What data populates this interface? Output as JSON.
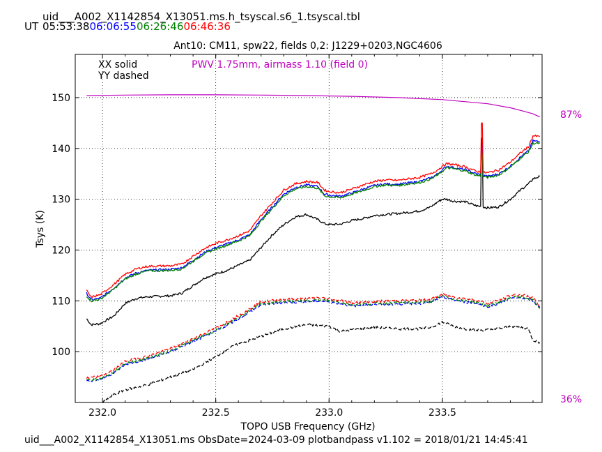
{
  "header": {
    "filename": "uid___A002_X1142854_X13051.ms.h_tsyscal.s6_1.tsyscal.tbl",
    "ut_label": "UT",
    "times": [
      {
        "text": "05:53:38",
        "color": "#000000"
      },
      {
        "text": "06:06:55",
        "color": "#0000ff"
      },
      {
        "text": "06:26:46",
        "color": "#008000"
      },
      {
        "text": "06:46:36",
        "color": "#ff0000"
      }
    ]
  },
  "footer": {
    "text": "uid___A002_X1142854_X13051.ms  ObsDate=2024-03-09   plotbandpass v1.102 = 2018/01/21 14:45:41"
  },
  "chart_data": {
    "type": "line",
    "title": "Ant10: CM11,  spw22,  fields 0,2: J1229+0203,NGC4606",
    "xlabel": "TOPO USB Frequency (GHz)",
    "ylabel": "Tsys (K)",
    "xlim": [
      231.88,
      233.94
    ],
    "ylim": [
      90,
      158.5
    ],
    "xticks": [
      232.0,
      232.5,
      233.0,
      233.5
    ],
    "xtick_labels": [
      "232.0",
      "232.5",
      "233.0",
      "233.5"
    ],
    "yticks": [
      100,
      110,
      120,
      130,
      140,
      150
    ],
    "ytick_labels": [
      "100",
      "110",
      "120",
      "130",
      "140",
      "150"
    ],
    "grid": true,
    "legend": {
      "placement": "top-left",
      "entries": [
        "XX solid",
        "YY dashed"
      ]
    },
    "annotation": {
      "text": "PWV 1.75mm, airmass 1.10 (field 0)",
      "color": "#bf00bf"
    },
    "right_axis_labels": [
      {
        "text": "87%",
        "color": "#bf00bf"
      },
      {
        "text": "36%",
        "color": "#bf00bf"
      }
    ],
    "transmission_curve": {
      "color": "#bf00bf",
      "x": [
        231.93,
        232.1,
        232.3,
        232.5,
        232.7,
        232.9,
        233.1,
        233.3,
        233.5,
        233.7,
        233.8,
        233.86,
        233.9,
        233.93
      ],
      "y": [
        150.4,
        150.5,
        150.55,
        150.55,
        150.5,
        150.4,
        150.25,
        150.0,
        149.6,
        148.8,
        148.0,
        147.3,
        146.8,
        146.2
      ]
    },
    "x": [
      231.93,
      231.95,
      231.99,
      232.05,
      232.1,
      232.15,
      232.2,
      232.3,
      232.35,
      232.4,
      232.45,
      232.5,
      232.55,
      232.6,
      232.65,
      232.7,
      232.75,
      232.8,
      232.85,
      232.9,
      232.95,
      232.98,
      233.0,
      233.05,
      233.1,
      233.15,
      233.2,
      233.25,
      233.3,
      233.35,
      233.4,
      233.45,
      233.48,
      233.5,
      233.52,
      233.55,
      233.6,
      233.65,
      233.68,
      233.7,
      233.75,
      233.8,
      233.85,
      233.88,
      233.9,
      233.93
    ],
    "series": [
      {
        "name": "XX 05:53:38",
        "color": "#000000",
        "dash": false,
        "values": [
          106.5,
          105.3,
          105.5,
          107.0,
          109.5,
          110.5,
          110.8,
          111.0,
          111.5,
          113.0,
          114.5,
          115.3,
          116.0,
          117.0,
          118.0,
          120.5,
          123.0,
          125.0,
          126.5,
          127.0,
          126.0,
          125.2,
          125.0,
          125.1,
          125.8,
          126.2,
          126.8,
          127.0,
          127.2,
          127.4,
          127.7,
          128.5,
          129.5,
          130.0,
          130.0,
          129.6,
          129.5,
          128.7,
          128.5,
          128.3,
          128.5,
          130.0,
          132.0,
          133.0,
          134.0,
          134.5
        ]
      },
      {
        "name": "XX 06:06:55",
        "color": "#0000ff",
        "dash": false,
        "values": [
          111.5,
          110.2,
          110.5,
          112.5,
          114.5,
          115.5,
          116.0,
          116.2,
          116.5,
          118.0,
          119.5,
          120.5,
          121.2,
          122.0,
          123.0,
          126.0,
          128.5,
          131.0,
          132.3,
          132.8,
          132.5,
          131.0,
          130.8,
          130.6,
          131.2,
          132.0,
          132.7,
          133.0,
          132.9,
          133.2,
          133.5,
          134.2,
          135.0,
          135.8,
          136.5,
          136.2,
          135.8,
          135.0,
          134.7,
          134.5,
          135.0,
          136.5,
          138.5,
          139.5,
          141.5,
          141.3
        ]
      },
      {
        "name": "XX 06:26:46",
        "color": "#008000",
        "dash": false,
        "values": [
          111.0,
          110.0,
          110.3,
          112.3,
          114.3,
          115.3,
          115.9,
          116.0,
          116.3,
          117.8,
          119.3,
          120.2,
          121.0,
          121.8,
          122.8,
          125.7,
          128.2,
          130.7,
          132.0,
          132.5,
          132.2,
          130.7,
          130.5,
          130.3,
          131.0,
          131.7,
          132.5,
          132.8,
          132.7,
          133.0,
          133.3,
          134.0,
          134.8,
          135.5,
          136.2,
          136.0,
          135.6,
          134.7,
          134.5,
          134.3,
          134.8,
          136.3,
          138.3,
          139.3,
          141.0,
          141.0
        ]
      },
      {
        "name": "XX 06:46:36",
        "color": "#ff0000",
        "dash": false,
        "values": [
          112.0,
          110.7,
          111.2,
          113.2,
          115.2,
          116.3,
          116.8,
          116.9,
          117.2,
          118.8,
          120.3,
          121.3,
          122.0,
          122.8,
          123.8,
          126.8,
          129.3,
          131.8,
          133.0,
          133.5,
          133.3,
          131.8,
          131.5,
          131.3,
          132.0,
          132.8,
          133.5,
          133.8,
          133.7,
          134.0,
          134.3,
          135.0,
          135.8,
          136.5,
          137.0,
          136.8,
          136.4,
          135.5,
          135.3,
          135.2,
          135.8,
          137.3,
          139.3,
          140.3,
          142.5,
          142.3
        ]
      },
      {
        "name": "YY 05:53:38",
        "color": "#000000",
        "dash": true,
        "values": null,
        "x": [
          232.0,
          232.05,
          232.1,
          232.2,
          232.3,
          232.4,
          232.5,
          232.55,
          232.6,
          232.7,
          232.8,
          232.9,
          233.0,
          233.05,
          233.1,
          233.2,
          233.3,
          233.4,
          233.45,
          233.5,
          233.55,
          233.6,
          233.65,
          233.7,
          233.75,
          233.8,
          233.85,
          233.88,
          233.9,
          233.93
        ],
        "y": [
          90.0,
          91.5,
          92.5,
          93.5,
          95.0,
          96.5,
          99.0,
          100.5,
          101.5,
          103.0,
          104.5,
          105.3,
          105.0,
          104.0,
          104.3,
          104.8,
          104.5,
          104.5,
          104.8,
          105.8,
          105.0,
          104.5,
          104.2,
          104.3,
          104.5,
          105.0,
          104.8,
          104.5,
          102.3,
          101.8
        ]
      },
      {
        "name": "YY 06:06:55",
        "color": "#0000ff",
        "dash": true,
        "x": [
          231.93,
          231.99,
          232.05,
          232.1,
          232.2,
          232.3,
          232.4,
          232.5,
          232.6,
          232.7,
          232.8,
          232.9,
          232.95,
          233.0,
          233.05,
          233.1,
          233.2,
          233.3,
          233.4,
          233.45,
          233.5,
          233.55,
          233.6,
          233.65,
          233.7,
          233.75,
          233.8,
          233.85,
          233.9,
          233.93
        ],
        "y": [
          94.2,
          94.5,
          95.8,
          97.5,
          98.5,
          100.0,
          102.0,
          104.0,
          106.5,
          109.2,
          109.7,
          109.8,
          110.0,
          109.8,
          109.5,
          109.0,
          109.3,
          109.4,
          109.5,
          109.7,
          110.7,
          110.2,
          109.8,
          109.5,
          108.9,
          109.5,
          110.5,
          110.6,
          110.0,
          108.7
        ]
      },
      {
        "name": "YY 06:26:46",
        "color": "#008000",
        "dash": true,
        "x": [
          231.93,
          231.99,
          232.05,
          232.1,
          232.2,
          232.3,
          232.4,
          232.5,
          232.6,
          232.7,
          232.8,
          232.9,
          232.95,
          233.0,
          233.05,
          233.1,
          233.2,
          233.3,
          233.4,
          233.45,
          233.5,
          233.55,
          233.6,
          233.65,
          233.7,
          233.75,
          233.8,
          233.85,
          233.9,
          233.93
        ],
        "y": [
          94.4,
          94.7,
          96.0,
          97.7,
          98.7,
          100.2,
          102.2,
          104.2,
          106.7,
          109.4,
          109.9,
          110.0,
          110.2,
          110.0,
          109.7,
          109.2,
          109.5,
          109.6,
          109.7,
          109.9,
          110.9,
          110.4,
          110.0,
          109.7,
          109.1,
          109.7,
          110.7,
          110.8,
          110.2,
          108.5
        ]
      },
      {
        "name": "YY 06:46:36",
        "color": "#ff0000",
        "dash": true,
        "x": [
          231.93,
          231.99,
          232.05,
          232.1,
          232.2,
          232.3,
          232.4,
          232.5,
          232.6,
          232.7,
          232.8,
          232.9,
          232.95,
          233.0,
          233.05,
          233.1,
          233.2,
          233.3,
          233.4,
          233.45,
          233.5,
          233.55,
          233.6,
          233.65,
          233.7,
          233.75,
          233.8,
          233.85,
          233.9,
          233.93
        ],
        "y": [
          94.8,
          95.1,
          96.4,
          98.1,
          99.1,
          100.6,
          102.6,
          104.6,
          107.1,
          109.8,
          110.3,
          110.4,
          110.6,
          110.4,
          110.1,
          109.6,
          109.9,
          110.0,
          110.1,
          110.3,
          111.3,
          110.8,
          110.4,
          110.1,
          109.5,
          110.1,
          111.1,
          111.2,
          110.6,
          109.0
        ]
      }
    ],
    "spike": {
      "x": 233.675,
      "y_peak_red": 145.0,
      "y_peak_black": 141.5
    }
  }
}
